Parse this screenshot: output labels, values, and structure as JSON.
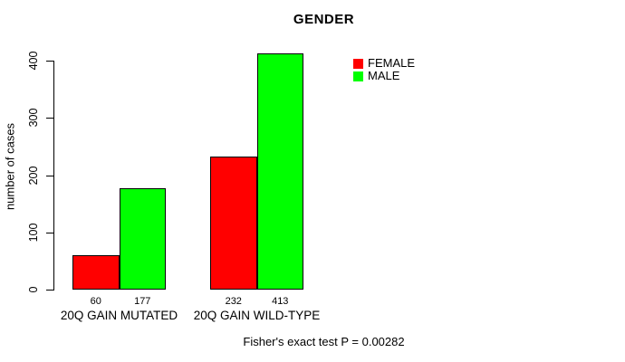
{
  "chart_data": {
    "type": "bar",
    "title": "GENDER",
    "xlabel": "",
    "ylabel": "number of cases",
    "categories": [
      "20Q GAIN MUTATED",
      "20Q GAIN WILD-TYPE"
    ],
    "series": [
      {
        "name": "FEMALE",
        "color": "#ff0000",
        "values": [
          60,
          232
        ]
      },
      {
        "name": "MALE",
        "color": "#00ff00",
        "values": [
          177,
          413
        ]
      }
    ],
    "bar_value_labels": [
      [
        "60",
        "177"
      ],
      [
        "232",
        "413"
      ]
    ],
    "y_ticks": [
      "0",
      "100",
      "200",
      "300",
      "400"
    ],
    "ylim": [
      0,
      413
    ],
    "grid": false,
    "legend_position": "top-right",
    "bar_border_color": "#000000",
    "footnote": "Fisher's exact test P = 0.00282"
  }
}
